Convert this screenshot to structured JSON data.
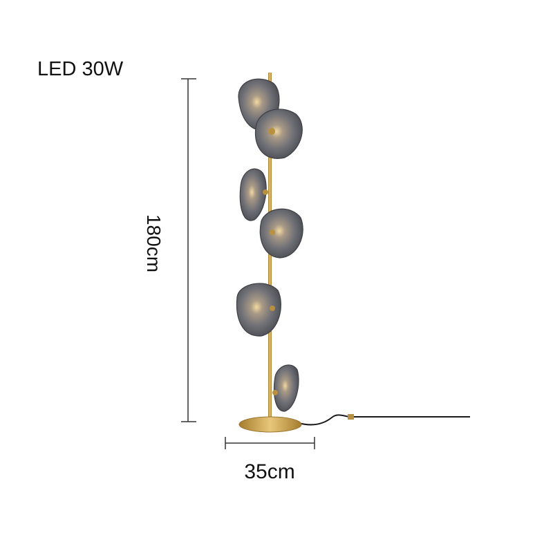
{
  "product": {
    "power_label": "LED 30W",
    "height_label": "180cm",
    "width_label": "35cm"
  },
  "colors": {
    "brass": "#c9a14a",
    "smoke_glass": "#6e6e74",
    "dimension_line": "#333333",
    "cord": "#1a1a1a"
  }
}
